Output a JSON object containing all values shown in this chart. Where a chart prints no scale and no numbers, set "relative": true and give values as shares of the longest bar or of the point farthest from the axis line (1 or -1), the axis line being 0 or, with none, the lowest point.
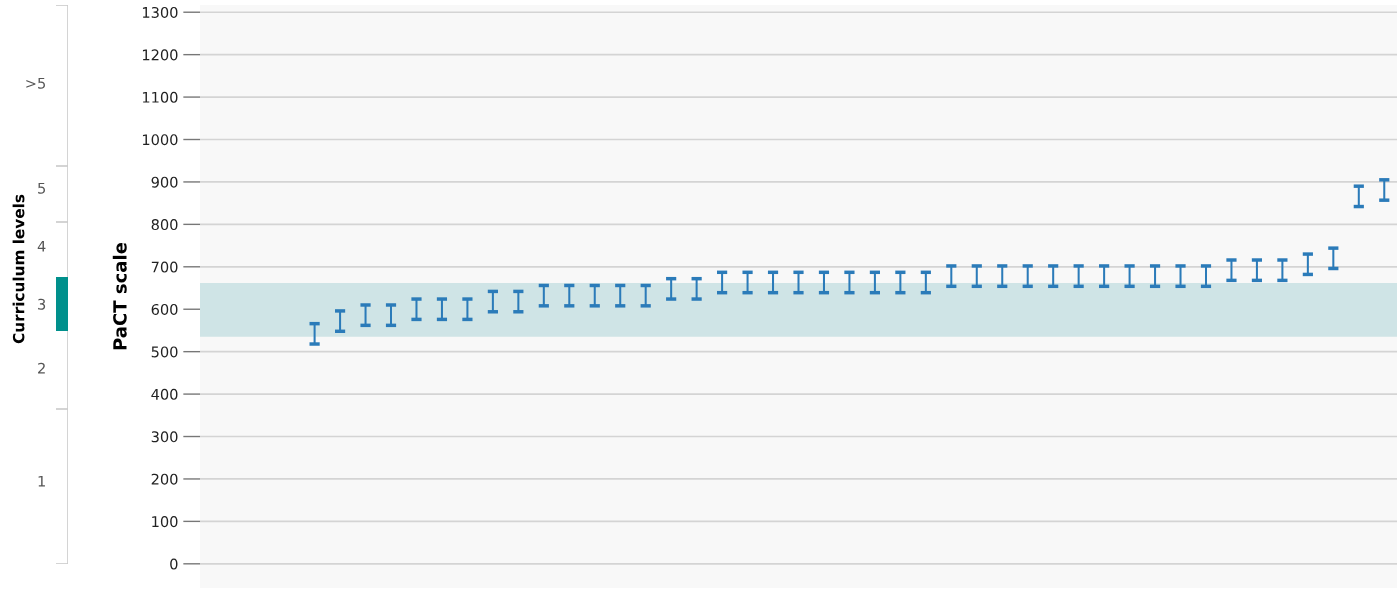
{
  "chart_data": [
    {
      "type": "bar",
      "orientation": "horizontal",
      "relative": true,
      "ylabel": "Curriculum levels",
      "categories": [
        ">5",
        "5",
        "4",
        "3",
        "2",
        "1"
      ],
      "series": [
        {
          "color": "#00908c",
          "values": [
            null,
            null,
            null,
            1,
            null,
            null
          ]
        }
      ]
    },
    {
      "type": "bar",
      "ylabel": "PaCT scale",
      "categories": [
        null,
        null,
        null,
        null,
        null,
        null,
        null,
        null,
        null,
        null,
        null,
        null,
        null,
        null,
        null,
        null,
        null,
        null,
        null,
        null,
        null,
        null,
        null,
        null,
        null,
        null,
        null,
        null,
        null,
        null,
        null,
        null,
        null,
        null,
        null,
        null,
        null,
        null,
        null,
        null,
        null,
        null,
        null,
        null,
        null,
        null,
        null
      ],
      "series": [
        {
          "color": "#2b7bb9",
          "base": [
            null,
            null,
            null,
            null,
            518,
            548,
            562,
            562,
            576,
            576,
            576,
            594,
            594,
            608,
            608,
            608,
            608,
            608,
            624,
            624,
            639,
            639,
            639,
            639,
            639,
            639,
            639,
            639,
            639,
            654,
            654,
            654,
            654,
            654,
            654,
            654,
            654,
            654,
            654,
            654,
            668,
            668,
            668,
            682,
            696,
            842,
            857
          ],
          "values": [
            null,
            null,
            null,
            null,
            48,
            48,
            48,
            48,
            48,
            48,
            48,
            48,
            48,
            48,
            48,
            48,
            48,
            48,
            48,
            48,
            48,
            48,
            48,
            48,
            48,
            48,
            48,
            48,
            48,
            48,
            48,
            48,
            48,
            48,
            48,
            48,
            48,
            48,
            48,
            48,
            48,
            48,
            48,
            48,
            48,
            48,
            48
          ]
        }
      ],
      "ylim": [
        -57,
        1317
      ],
      "yticks": [
        0,
        100,
        200,
        300,
        400,
        500,
        600,
        700,
        800,
        900,
        1000,
        1100,
        1200,
        1300
      ],
      "bands": [
        {
          "axis": "y",
          "from": 535,
          "to": 662,
          "color": "#cfe4e6"
        }
      ],
      "grid": "y",
      "tick_labels": "y"
    }
  ]
}
